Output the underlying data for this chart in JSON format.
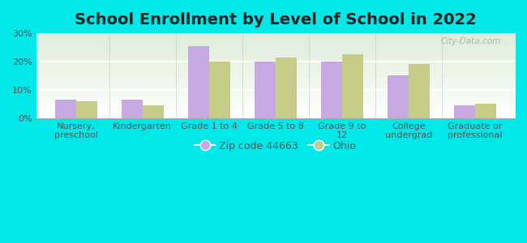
{
  "title": "School Enrollment by Level of School in 2022",
  "categories": [
    "Nursery,\npreschool",
    "Kindergarten",
    "Grade 1 to 4",
    "Grade 5 to 8",
    "Grade 9 to\n12",
    "College\nundergrad",
    "Graduate or\nprofessional"
  ],
  "zip_values": [
    6.5,
    6.5,
    25.5,
    20.0,
    20.0,
    15.0,
    4.5
  ],
  "ohio_values": [
    6.0,
    4.5,
    20.0,
    21.5,
    22.5,
    19.0,
    5.0
  ],
  "zip_color": "#c8a8e0",
  "ohio_color": "#c5cc88",
  "background_color": "#00e8e8",
  "grad_bottom": "#ffffff",
  "grad_top": "#deecd8",
  "ylim": [
    0,
    30
  ],
  "yticks": [
    0,
    10,
    20,
    30
  ],
  "legend_zip_label": "Zip code 44663",
  "legend_ohio_label": "Ohio",
  "watermark": "City-Data.com",
  "title_fontsize": 14,
  "tick_fontsize": 8,
  "legend_fontsize": 9,
  "bar_width": 0.32
}
